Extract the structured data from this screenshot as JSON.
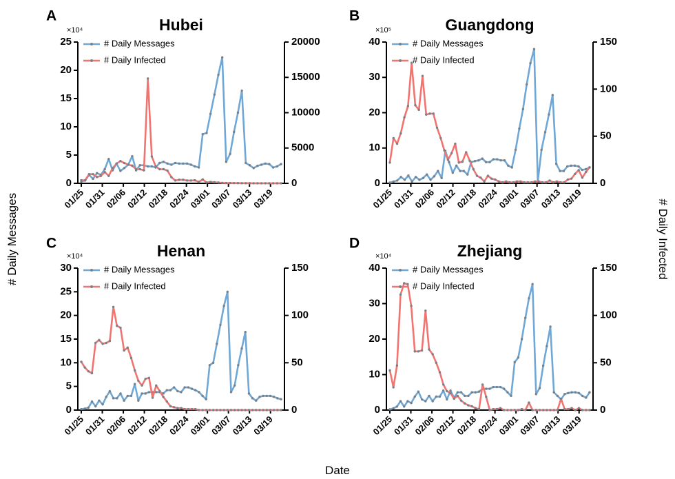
{
  "figure": {
    "ylabel_left": "# Daily Messages",
    "ylabel_right": "# Daily Infected",
    "xlabel": "Date",
    "colors": {
      "messages": "#6fa8d6",
      "infected": "#f07470",
      "marker": "#7a8088"
    }
  },
  "chart_data": [
    {
      "type": "line",
      "panel_letter": "A",
      "title": "Hubei",
      "left_multiplier": "×10⁴",
      "left_ylim": [
        0,
        25
      ],
      "left_ticks": [
        "0",
        "5",
        "10",
        "15",
        "20",
        "25"
      ],
      "right_ylim": [
        0,
        20000
      ],
      "right_ticks": [
        "0",
        "5000",
        "10000",
        "15000",
        "20000"
      ],
      "xtick_labels": [
        "01/25",
        "01/31",
        "02/06",
        "02/12",
        "02/18",
        "02/24",
        "03/01",
        "03/07",
        "03/13",
        "03/19"
      ],
      "series": [
        {
          "name": "# Daily Messages",
          "axis": "left",
          "values": [
            0.3,
            0.5,
            1.5,
            0.8,
            1.8,
            1.5,
            2.5,
            4.3,
            2.3,
            3.5,
            2.2,
            2.7,
            3.3,
            4.8,
            2.3,
            3.2,
            3.2,
            3.0,
            3.0,
            2.8,
            3.6,
            3.8,
            3.5,
            3.3,
            3.6,
            3.5,
            3.5,
            3.5,
            3.3,
            3.0,
            2.8,
            8.7,
            8.9,
            12.3,
            15.7,
            19.2,
            22.3,
            3.8,
            5.2,
            9.1,
            12.5,
            16.4,
            3.6,
            3.2,
            2.7,
            3.1,
            3.3,
            3.5,
            3.4,
            2.8,
            3.0,
            3.4
          ]
        },
        {
          "name": "# Daily Infected",
          "axis": "right",
          "values": [
            440,
            444,
            1300,
            1300,
            890,
            1050,
            1590,
            1050,
            2150,
            2800,
            3150,
            2870,
            2650,
            2500,
            2000,
            2000,
            1840,
            14840,
            3800,
            2400,
            2000,
            2000,
            1800,
            880,
            400,
            500,
            500,
            400,
            400,
            430,
            200,
            550,
            120,
            200,
            150,
            110,
            60,
            40,
            45,
            35,
            30,
            20,
            20,
            15,
            10,
            10,
            10,
            10,
            10,
            10,
            10,
            10
          ]
        }
      ]
    },
    {
      "type": "line",
      "panel_letter": "B",
      "title": "Guangdong",
      "left_multiplier": "×10⁵",
      "left_ylim": [
        0,
        40
      ],
      "left_ticks": [
        "0",
        "10",
        "20",
        "30",
        "40"
      ],
      "right_ylim": [
        0,
        150
      ],
      "right_ticks": [
        "0",
        "50",
        "100",
        "150"
      ],
      "xtick_labels": [
        "01/25",
        "01/31",
        "02/06",
        "02/12",
        "02/18",
        "02/24",
        "03/01",
        "03/07",
        "03/13",
        "03/19"
      ],
      "series": [
        {
          "name": "# Daily Messages",
          "axis": "left",
          "values": [
            0.2,
            0.5,
            0.8,
            1.8,
            1.0,
            2.2,
            0.5,
            1.8,
            1.0,
            1.5,
            2.5,
            1.0,
            2.0,
            3.5,
            1.5,
            9.2,
            6.0,
            3.0,
            5.0,
            3.5,
            3.5,
            2.5,
            6.0,
            6.3,
            6.5,
            7.0,
            6.0,
            6.0,
            6.8,
            6.8,
            6.5,
            6.5,
            5.0,
            4.5,
            9.5,
            15.5,
            21.0,
            28.0,
            34.0,
            38.0,
            0.5,
            9.5,
            14.5,
            19.5,
            25.0,
            5.5,
            3.5,
            3.5,
            4.8,
            5.0,
            5.0,
            4.8,
            3.8,
            4.0,
            4.5
          ]
        },
        {
          "name": "# Daily Infected",
          "axis": "right",
          "values": [
            22,
            48,
            42,
            53,
            70,
            82,
            128,
            83,
            78,
            114,
            73,
            74,
            74,
            59,
            48,
            35,
            25,
            32,
            42,
            22,
            23,
            33,
            24,
            15,
            8,
            6,
            2,
            8,
            5,
            4,
            2,
            1,
            2,
            1,
            1,
            2,
            2,
            1,
            1,
            1,
            2,
            2,
            1,
            1,
            3,
            1,
            2,
            1,
            1,
            4,
            5,
            10,
            14,
            6,
            12,
            17
          ]
        }
      ]
    },
    {
      "type": "line",
      "panel_letter": "C",
      "title": "Henan",
      "left_multiplier": "×10⁴",
      "left_ylim": [
        0,
        30
      ],
      "left_ticks": [
        "0",
        "5",
        "10",
        "15",
        "20",
        "25",
        "30"
      ],
      "right_ylim": [
        0,
        150
      ],
      "right_ticks": [
        "0",
        "50",
        "100",
        "150"
      ],
      "xtick_labels": [
        "01/25",
        "01/31",
        "02/06",
        "02/12",
        "02/18",
        "02/24",
        "03/01",
        "03/07",
        "03/13",
        "03/19"
      ],
      "series": [
        {
          "name": "# Daily Messages",
          "axis": "left",
          "values": [
            0.2,
            0.3,
            0.5,
            1.8,
            0.8,
            2.0,
            1.2,
            2.8,
            4.0,
            2.5,
            2.5,
            3.5,
            2.0,
            3.0,
            3.0,
            5.5,
            2.0,
            3.5,
            3.5,
            3.8,
            3.8,
            3.8,
            3.8,
            3.5,
            4.2,
            4.2,
            4.8,
            4.0,
            3.8,
            4.8,
            4.8,
            4.5,
            4.2,
            3.8,
            3.0,
            2.3,
            9.5,
            10.0,
            14.0,
            18.0,
            22.0,
            25.0,
            3.8,
            5.2,
            9.5,
            13.0,
            16.5,
            3.5,
            2.5,
            2.0,
            2.8,
            3.0,
            3.0,
            3.0,
            2.8,
            2.5,
            2.3
          ]
        },
        {
          "name": "# Daily Infected",
          "axis": "right",
          "values": [
            51,
            45,
            41,
            39,
            71,
            74,
            70,
            71,
            73,
            109,
            89,
            87,
            63,
            66,
            55,
            42,
            31,
            26,
            33,
            34,
            13,
            26,
            20,
            14,
            9,
            4,
            3,
            2,
            2,
            1,
            1,
            1,
            1,
            0,
            0,
            0,
            0,
            0,
            0,
            0,
            0,
            0,
            0,
            0,
            0,
            0,
            0,
            0,
            0,
            0,
            0,
            0,
            0,
            0,
            0,
            0,
            0
          ]
        }
      ]
    },
    {
      "type": "line",
      "panel_letter": "D",
      "title": "Zhejiang",
      "left_multiplier": "×10⁴",
      "left_ylim": [
        0,
        40
      ],
      "left_ticks": [
        "0",
        "10",
        "20",
        "30",
        "40"
      ],
      "right_ylim": [
        0,
        150
      ],
      "right_ticks": [
        "0",
        "50",
        "100",
        "150"
      ],
      "xtick_labels": [
        "01/25",
        "01/31",
        "02/06",
        "02/12",
        "02/18",
        "02/24",
        "03/01",
        "03/07",
        "03/13",
        "03/19"
      ],
      "series": [
        {
          "name": "# Daily Messages",
          "axis": "left",
          "values": [
            0.2,
            0.5,
            1.0,
            2.5,
            1.0,
            2.5,
            2.0,
            3.8,
            5.2,
            3.0,
            2.5,
            4.0,
            2.5,
            3.8,
            3.8,
            5.5,
            3.0,
            5.5,
            3.5,
            5.0,
            5.0,
            4.0,
            4.0,
            5.0,
            5.0,
            5.2,
            6.0,
            6.0,
            6.0,
            6.5,
            6.5,
            6.5,
            6.0,
            5.0,
            4.0,
            13.5,
            14.8,
            20.0,
            26.0,
            31.5,
            35.5,
            4.5,
            6.2,
            12.5,
            18.0,
            23.5,
            5.0,
            4.0,
            3.0,
            4.5,
            4.8,
            5.0,
            5.0,
            4.8,
            4.0,
            3.5,
            5.0
          ]
        },
        {
          "name": "# Daily Infected",
          "axis": "right",
          "values": [
            42,
            24,
            47,
            122,
            134,
            133,
            110,
            62,
            62,
            63,
            105,
            64,
            59,
            50,
            40,
            27,
            20,
            18,
            12,
            15,
            10,
            7,
            5,
            4,
            2,
            1,
            27,
            14,
            0,
            1,
            1,
            2,
            0,
            0,
            0,
            0,
            0,
            1,
            0,
            8,
            0,
            0,
            0,
            0,
            0,
            0,
            0,
            0,
            12,
            1,
            1,
            2,
            0,
            2,
            0,
            0,
            0
          ]
        }
      ]
    }
  ]
}
